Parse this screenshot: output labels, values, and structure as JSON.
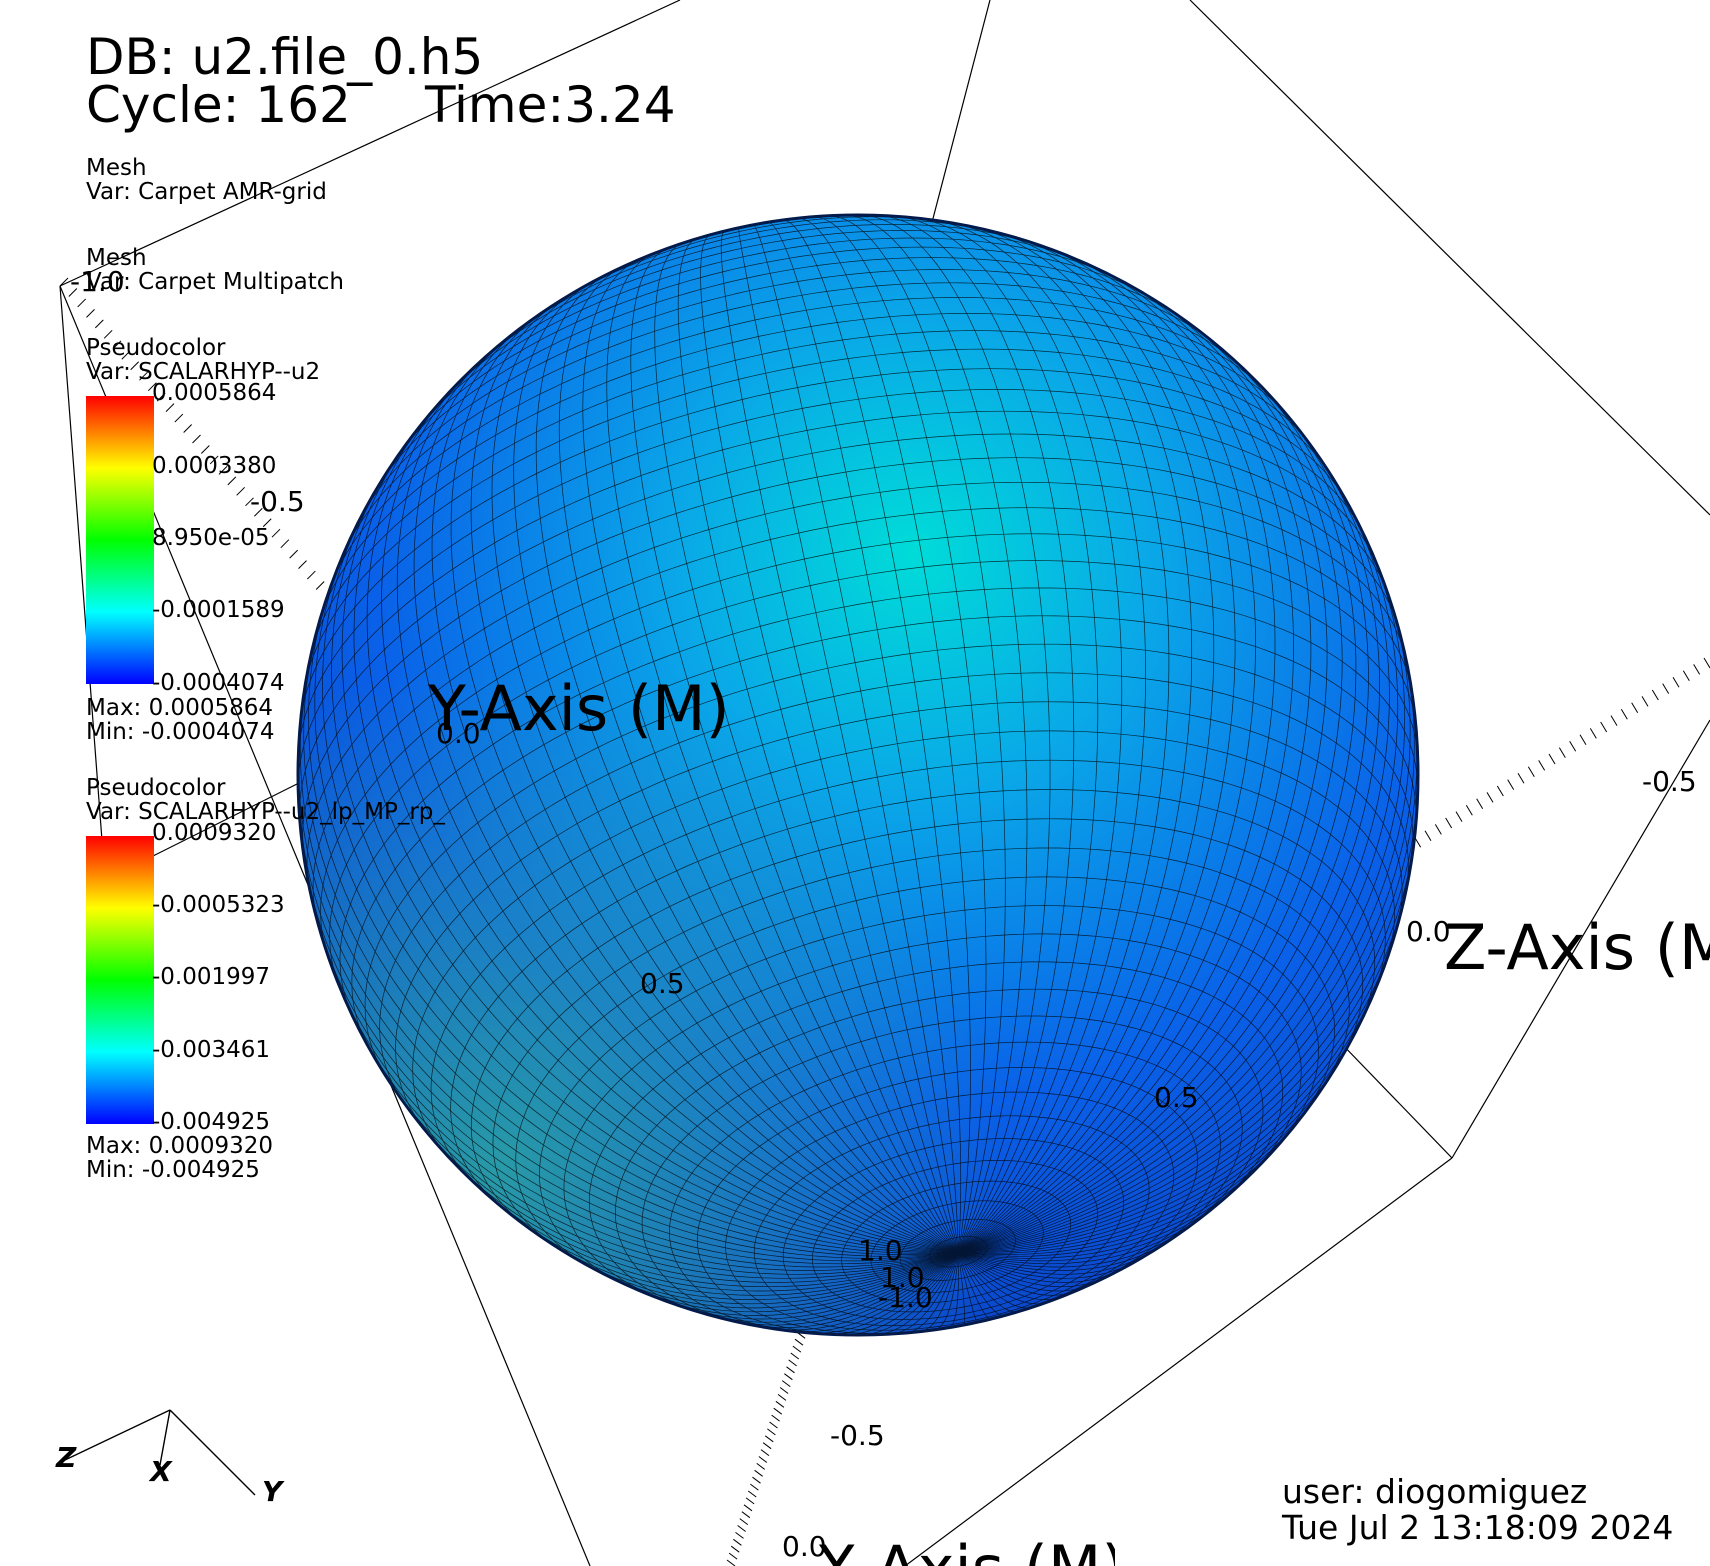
{
  "header": {
    "db": "DB: u2.file_0.h5",
    "cycle": "Cycle: 162",
    "time": "Time:3.24"
  },
  "legends": [
    {
      "plot": "Mesh",
      "var": "Var: Carpet AMR-grid"
    },
    {
      "plot": "Mesh",
      "var": "Var: Carpet Multipatch"
    },
    {
      "plot": "Pseudocolor",
      "var": "Var: SCALARHYP--u2",
      "ticks": [
        "0.0005864",
        "0.0003380",
        "8.950e-05",
        "-0.0001589",
        "-0.0004074"
      ],
      "max": "Max:  0.0005864",
      "min": "Min: -0.0004074"
    },
    {
      "plot": "Pseudocolor",
      "var": "Var: SCALARHYP--u2_lp_MP_rp_",
      "ticks": [
        "0.0009320",
        "-0.0005323",
        "-0.001997",
        "-0.003461",
        "-0.004925"
      ],
      "max": "Max:  0.0009320",
      "min": "Min: -0.004925"
    }
  ],
  "axes": {
    "y_title": "Y-Axis (M)",
    "z_title": "Z-Axis (M)",
    "x_title": "X-Axis (M)",
    "tick_labels": [
      "-1.0",
      "-0.5",
      "0.0",
      "0.5",
      "1.0",
      "-0.5",
      "0.0",
      "0.5",
      "1.0",
      "-1.0",
      "-0.5",
      "0.0"
    ]
  },
  "triad": {
    "z": "Z",
    "x": "X",
    "y": "Y"
  },
  "footer": {
    "user": "user: diogomiguez",
    "date": "Tue Jul  2 13:18:09 2024"
  },
  "colors": {
    "sphere_highlight": "#00d8d8",
    "sphere_base": "#0a63e6",
    "sphere_edge": "#031a4a",
    "colormap": [
      "#ff0000",
      "#ffff00",
      "#00ff00",
      "#00ffff",
      "#0000ff"
    ]
  }
}
